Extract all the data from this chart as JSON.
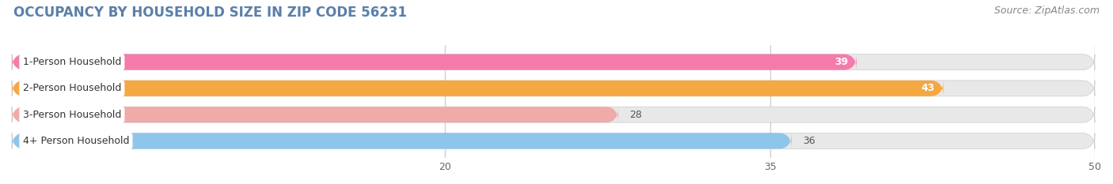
{
  "title": "OCCUPANCY BY HOUSEHOLD SIZE IN ZIP CODE 56231",
  "source": "Source: ZipAtlas.com",
  "categories": [
    "1-Person Household",
    "2-Person Household",
    "3-Person Household",
    "4+ Person Household"
  ],
  "values": [
    39,
    43,
    28,
    36
  ],
  "bar_colors": [
    "#F47BAC",
    "#F5A742",
    "#F0AAAA",
    "#8EC5EA"
  ],
  "label_inside": [
    true,
    true,
    false,
    false
  ],
  "xmin": 0,
  "xmax": 50,
  "xticks": [
    20,
    35,
    50
  ],
  "bg_color": "#ffffff",
  "bar_bg_color": "#e8e8e8",
  "grid_color": "#d0d0d0",
  "title_color": "#5a7fa8",
  "title_fontsize": 12,
  "source_fontsize": 9,
  "bar_height": 0.6,
  "value_fontsize": 9,
  "cat_fontsize": 9,
  "tick_fontsize": 9
}
